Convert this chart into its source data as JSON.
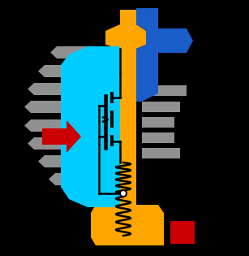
{
  "background_color": "#000000",
  "colors": {
    "yellow": "#FFA500",
    "cyan": "#00CCFF",
    "gray": "#909090",
    "blue": "#1A5CC8",
    "red": "#CC0000",
    "black": "#000000",
    "white": "#FFFFFF"
  },
  "figsize": [
    3.07,
    3.15
  ],
  "dpi": 100
}
